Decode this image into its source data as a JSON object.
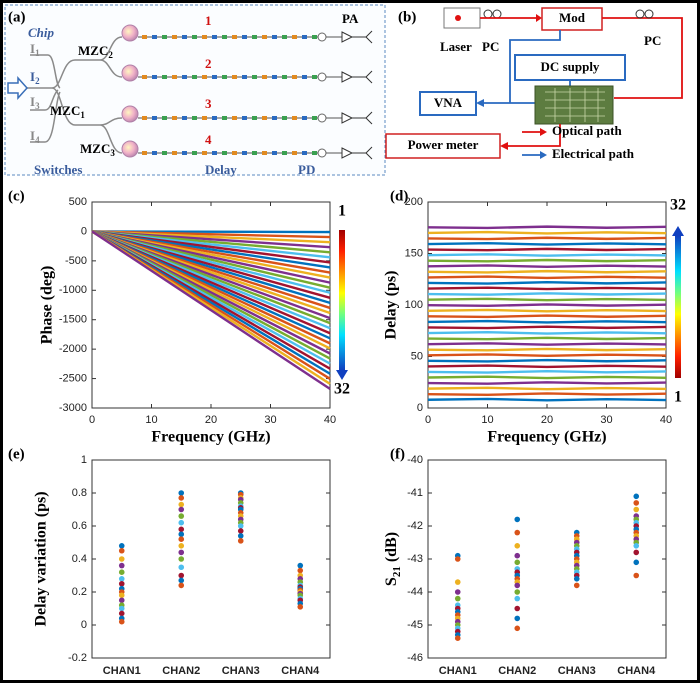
{
  "panel_a": {
    "label": "(a)",
    "chip": "Chip",
    "inputs": [
      {
        "text": "I",
        "sub": "1"
      },
      {
        "text": "I",
        "sub": "2"
      },
      {
        "text": "I",
        "sub": "3"
      },
      {
        "text": "I",
        "sub": "4"
      }
    ],
    "switches": [
      {
        "text": "MZC",
        "sub": "2"
      },
      {
        "text": "MZC",
        "sub": "1"
      },
      {
        "text": "MZC",
        "sub": "3"
      }
    ],
    "channels": [
      "1",
      "2",
      "3",
      "4"
    ],
    "sections": [
      "Switches",
      "Delay",
      "PD"
    ],
    "output": "PA"
  },
  "panel_b": {
    "label": "(b)",
    "laser": "Laser",
    "pc": [
      "PC",
      "PC"
    ],
    "modulator": "Mod",
    "dc_supply": "DC supply",
    "vna": "VNA",
    "power_meter": "Power meter",
    "legend": [
      "Optical path",
      "Electrical path"
    ]
  },
  "chart_data": [
    {
      "type": "line",
      "label": "(c)",
      "xlabel": "Frequency (GHz)",
      "ylabel": "Phase (deg)",
      "x": [
        0,
        40
      ],
      "xlim": [
        0,
        40
      ],
      "xticks": [
        0,
        10,
        20,
        30,
        40
      ],
      "ylim": [
        -3000,
        500
      ],
      "yticks": [
        -3000,
        -2500,
        -2000,
        -1500,
        -1000,
        -500,
        0,
        500
      ],
      "colorbar_labels": [
        "1",
        "32"
      ],
      "colorbar_direction": "down",
      "series": [
        {
          "color": "#0072BD",
          "values": [
            0,
            -10
          ]
        },
        {
          "color": "#D95319",
          "values": [
            0,
            -96
          ]
        },
        {
          "color": "#EDB120",
          "values": [
            0,
            -182
          ]
        },
        {
          "color": "#7E2F8E",
          "values": [
            0,
            -268
          ]
        },
        {
          "color": "#77AC30",
          "values": [
            0,
            -354
          ]
        },
        {
          "color": "#4DBEEE",
          "values": [
            0,
            -440
          ]
        },
        {
          "color": "#A2142F",
          "values": [
            0,
            -526
          ]
        },
        {
          "color": "#0072BD",
          "values": [
            0,
            -612
          ]
        },
        {
          "color": "#D95319",
          "values": [
            0,
            -698
          ]
        },
        {
          "color": "#EDB120",
          "values": [
            0,
            -784
          ]
        },
        {
          "color": "#7E2F8E",
          "values": [
            0,
            -870
          ]
        },
        {
          "color": "#77AC30",
          "values": [
            0,
            -956
          ]
        },
        {
          "color": "#4DBEEE",
          "values": [
            0,
            -1042
          ]
        },
        {
          "color": "#A2142F",
          "values": [
            0,
            -1128
          ]
        },
        {
          "color": "#0072BD",
          "values": [
            0,
            -1214
          ]
        },
        {
          "color": "#D95319",
          "values": [
            0,
            -1300
          ]
        },
        {
          "color": "#EDB120",
          "values": [
            0,
            -1386
          ]
        },
        {
          "color": "#7E2F8E",
          "values": [
            0,
            -1472
          ]
        },
        {
          "color": "#77AC30",
          "values": [
            0,
            -1558
          ]
        },
        {
          "color": "#4DBEEE",
          "values": [
            0,
            -1644
          ]
        },
        {
          "color": "#A2142F",
          "values": [
            0,
            -1730
          ]
        },
        {
          "color": "#0072BD",
          "values": [
            0,
            -1816
          ]
        },
        {
          "color": "#D95319",
          "values": [
            0,
            -1902
          ]
        },
        {
          "color": "#EDB120",
          "values": [
            0,
            -1988
          ]
        },
        {
          "color": "#7E2F8E",
          "values": [
            0,
            -2074
          ]
        },
        {
          "color": "#77AC30",
          "values": [
            0,
            -2160
          ]
        },
        {
          "color": "#4DBEEE",
          "values": [
            0,
            -2246
          ]
        },
        {
          "color": "#A2142F",
          "values": [
            0,
            -2332
          ]
        },
        {
          "color": "#0072BD",
          "values": [
            0,
            -2418
          ]
        },
        {
          "color": "#D95319",
          "values": [
            0,
            -2504
          ]
        },
        {
          "color": "#EDB120",
          "values": [
            0,
            -2590
          ]
        },
        {
          "color": "#7E2F8E",
          "values": [
            0,
            -2676
          ]
        }
      ]
    },
    {
      "type": "line",
      "label": "(d)",
      "xlabel": "Frequency (GHz)",
      "ylabel": "Delay (ps)",
      "x": [
        0,
        10,
        20,
        30,
        40
      ],
      "xlim": [
        0,
        40
      ],
      "xticks": [
        0,
        10,
        20,
        30,
        40
      ],
      "ylim": [
        0,
        200
      ],
      "yticks": [
        0,
        50,
        100,
        150,
        200
      ],
      "colorbar_labels": [
        "1",
        "32"
      ],
      "colorbar_direction": "up",
      "series": [
        {
          "color": "#0072BD",
          "values": [
            8,
            8.8,
            7.5,
            8.6,
            7.7
          ]
        },
        {
          "color": "#D95319",
          "values": [
            13.4,
            12.8,
            14.1,
            13.0,
            13.9
          ]
        },
        {
          "color": "#EDB120",
          "values": [
            18.8,
            19.6,
            18.3,
            19.4,
            18.5
          ]
        },
        {
          "color": "#7E2F8E",
          "values": [
            24.2,
            23.6,
            24.9,
            23.8,
            24.7
          ]
        },
        {
          "color": "#77AC30",
          "values": [
            29.6,
            30.4,
            29.1,
            30.2,
            29.3
          ]
        },
        {
          "color": "#4DBEEE",
          "values": [
            35,
            34.4,
            35.7,
            34.6,
            35.5
          ]
        },
        {
          "color": "#A2142F",
          "values": [
            40.4,
            41.2,
            39.9,
            41.0,
            40.1
          ]
        },
        {
          "color": "#0072BD",
          "values": [
            45.8,
            45.2,
            46.5,
            45.4,
            46.3
          ]
        },
        {
          "color": "#D95319",
          "values": [
            51.2,
            52.0,
            50.7,
            51.8,
            50.9
          ]
        },
        {
          "color": "#EDB120",
          "values": [
            56.6,
            56.0,
            57.3,
            56.2,
            57.1
          ]
        },
        {
          "color": "#7E2F8E",
          "values": [
            62,
            62.8,
            61.5,
            62.6,
            61.7
          ]
        },
        {
          "color": "#77AC30",
          "values": [
            67.4,
            66.8,
            68.1,
            67.0,
            67.9
          ]
        },
        {
          "color": "#4DBEEE",
          "values": [
            72.8,
            73.6,
            72.3,
            73.4,
            72.5
          ]
        },
        {
          "color": "#A2142F",
          "values": [
            78.2,
            77.6,
            78.9,
            77.8,
            78.7
          ]
        },
        {
          "color": "#0072BD",
          "values": [
            83.6,
            84.4,
            83.1,
            84.2,
            83.3
          ]
        },
        {
          "color": "#D95319",
          "values": [
            89,
            88.4,
            89.7,
            88.6,
            89.5
          ]
        },
        {
          "color": "#EDB120",
          "values": [
            94.4,
            95.2,
            93.9,
            95.0,
            94.1
          ]
        },
        {
          "color": "#7E2F8E",
          "values": [
            99.8,
            99.2,
            100.5,
            99.4,
            100.3
          ]
        },
        {
          "color": "#77AC30",
          "values": [
            105.2,
            106.0,
            104.7,
            105.8,
            104.9
          ]
        },
        {
          "color": "#4DBEEE",
          "values": [
            110.6,
            110.0,
            111.3,
            110.2,
            111.1
          ]
        },
        {
          "color": "#A2142F",
          "values": [
            116,
            116.8,
            115.5,
            116.6,
            115.7
          ]
        },
        {
          "color": "#0072BD",
          "values": [
            121.4,
            120.8,
            122.1,
            121.0,
            121.9
          ]
        },
        {
          "color": "#D95319",
          "values": [
            126.8,
            127.6,
            126.3,
            127.4,
            126.5
          ]
        },
        {
          "color": "#EDB120",
          "values": [
            132.2,
            131.6,
            132.9,
            131.8,
            132.7
          ]
        },
        {
          "color": "#7E2F8E",
          "values": [
            137.6,
            138.4,
            137.1,
            138.2,
            137.3
          ]
        },
        {
          "color": "#77AC30",
          "values": [
            143,
            142.4,
            143.7,
            142.6,
            143.5
          ]
        },
        {
          "color": "#4DBEEE",
          "values": [
            148.4,
            149.2,
            147.9,
            149.0,
            148.1
          ]
        },
        {
          "color": "#A2142F",
          "values": [
            153.8,
            153.2,
            154.5,
            153.4,
            154.3
          ]
        },
        {
          "color": "#0072BD",
          "values": [
            159.2,
            160.0,
            158.7,
            159.8,
            158.9
          ]
        },
        {
          "color": "#D95319",
          "values": [
            164.6,
            164.0,
            165.3,
            164.2,
            165.1
          ]
        },
        {
          "color": "#EDB120",
          "values": [
            170,
            170.8,
            169.5,
            170.6,
            169.7
          ]
        },
        {
          "color": "#7E2F8E",
          "values": [
            175.4,
            174.8,
            176.1,
            175.0,
            175.9
          ]
        }
      ]
    },
    {
      "type": "strip",
      "label": "(e)",
      "ylabel": "Delay variation (ps)",
      "categories": [
        "CHAN1",
        "CHAN2",
        "CHAN3",
        "CHAN4"
      ],
      "ylim": [
        -0.2,
        1
      ],
      "yticks": [
        -0.2,
        0,
        0.2,
        0.4,
        0.6,
        0.8,
        1
      ],
      "point_colors": [
        "#0072BD",
        "#D95319",
        "#EDB120",
        "#7E2F8E",
        "#77AC30",
        "#4DBEEE",
        "#A2142F"
      ],
      "values": [
        [
          0.48,
          0.45,
          0.4,
          0.36,
          0.32,
          0.28,
          0.25,
          0.22,
          0.2,
          0.18,
          0.15,
          0.12,
          0.1,
          0.07,
          0.04,
          0.02
        ],
        [
          0.8,
          0.77,
          0.73,
          0.7,
          0.66,
          0.62,
          0.58,
          0.55,
          0.52,
          0.48,
          0.44,
          0.4,
          0.35,
          0.3,
          0.27,
          0.24
        ],
        [
          0.8,
          0.79,
          0.77,
          0.76,
          0.74,
          0.72,
          0.71,
          0.7,
          0.68,
          0.66,
          0.64,
          0.62,
          0.6,
          0.57,
          0.54,
          0.51
        ],
        [
          0.36,
          0.33,
          0.3,
          0.28,
          0.26,
          0.24,
          0.23,
          0.22,
          0.21,
          0.2,
          0.19,
          0.18,
          0.16,
          0.15,
          0.13,
          0.11
        ]
      ]
    },
    {
      "type": "strip",
      "label": "(f)",
      "ylabel": {
        "base": "S",
        "sub": "21",
        "rest": " (dB)"
      },
      "categories": [
        "CHAN1",
        "CHAN2",
        "CHAN3",
        "CHAN4"
      ],
      "ylim": [
        -46,
        -40
      ],
      "yticks": [
        -46,
        -45,
        -44,
        -43,
        -42,
        -41,
        -40
      ],
      "point_colors": [
        "#0072BD",
        "#D95319",
        "#EDB120",
        "#7E2F8E",
        "#77AC30",
        "#4DBEEE",
        "#A2142F"
      ],
      "values": [
        [
          -42.9,
          -43.0,
          -43.7,
          -44.0,
          -44.2,
          -44.4,
          -44.5,
          -44.6,
          -44.7,
          -44.8,
          -44.9,
          -45.0,
          -45.1,
          -45.2,
          -45.3,
          -45.4
        ],
        [
          -41.8,
          -42.2,
          -42.6,
          -42.9,
          -43.1,
          -43.3,
          -43.4,
          -43.5,
          -43.6,
          -43.7,
          -43.8,
          -44.0,
          -44.2,
          -44.5,
          -44.8,
          -45.1
        ],
        [
          -42.2,
          -42.3,
          -42.4,
          -42.5,
          -42.6,
          -42.7,
          -42.8,
          -42.9,
          -43.0,
          -43.1,
          -43.2,
          -43.3,
          -43.4,
          -43.5,
          -43.6,
          -43.8
        ],
        [
          -41.1,
          -41.3,
          -41.5,
          -41.7,
          -41.8,
          -41.9,
          -42.0,
          -42.1,
          -42.2,
          -42.3,
          -42.4,
          -42.5,
          -42.6,
          -42.8,
          -43.1,
          -43.5
        ]
      ]
    }
  ]
}
